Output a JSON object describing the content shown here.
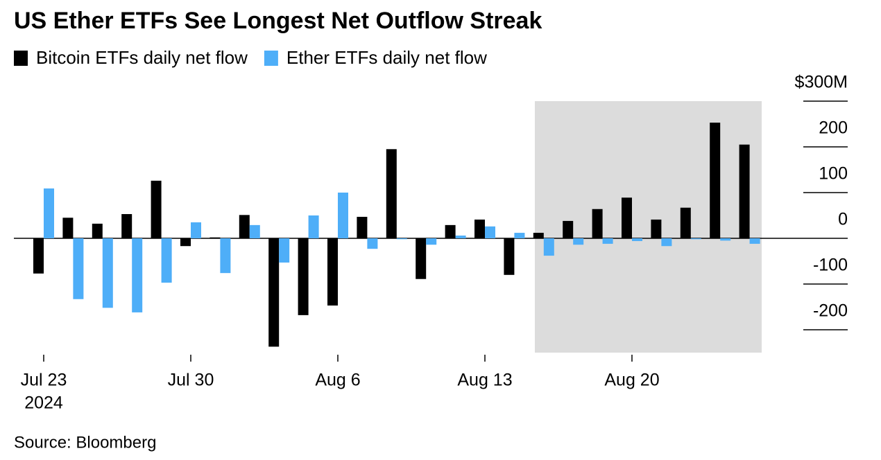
{
  "chart_data": {
    "type": "bar",
    "title": "US Ether ETFs See Longest Net Outflow Streak",
    "source": "Source: Bloomberg",
    "year_label": "2024",
    "categories": [
      "Jul 23",
      null,
      null,
      null,
      null,
      "Jul 30",
      null,
      null,
      null,
      null,
      "Aug 6",
      null,
      null,
      null,
      null,
      "Aug 13",
      null,
      null,
      null,
      null,
      "Aug 20",
      null,
      null,
      null,
      null
    ],
    "series": [
      {
        "name": "Bitcoin ETFs daily net flow",
        "color": "#000000",
        "values": [
          -77,
          45,
          32,
          53,
          126,
          -17,
          2,
          51,
          -237,
          -168,
          -147,
          47,
          195,
          -89,
          29,
          41,
          -80,
          12,
          38,
          64,
          89,
          41,
          67,
          253,
          205
        ]
      },
      {
        "name": "Ether ETFs daily net flow",
        "color": "#4eaef8",
        "values": [
          109,
          -133,
          -152,
          -162,
          -97,
          35,
          -76,
          29,
          -53,
          50,
          100,
          -23,
          -2,
          -14,
          6,
          26,
          12,
          -38,
          -14,
          -12,
          -6,
          -17,
          -2,
          -5,
          -12
        ]
      }
    ],
    "ylim": [
      -250,
      300
    ],
    "yticks": [
      -200,
      -100,
      0,
      100,
      200,
      {
        "value": 300,
        "label": "$300M"
      }
    ]
  }
}
